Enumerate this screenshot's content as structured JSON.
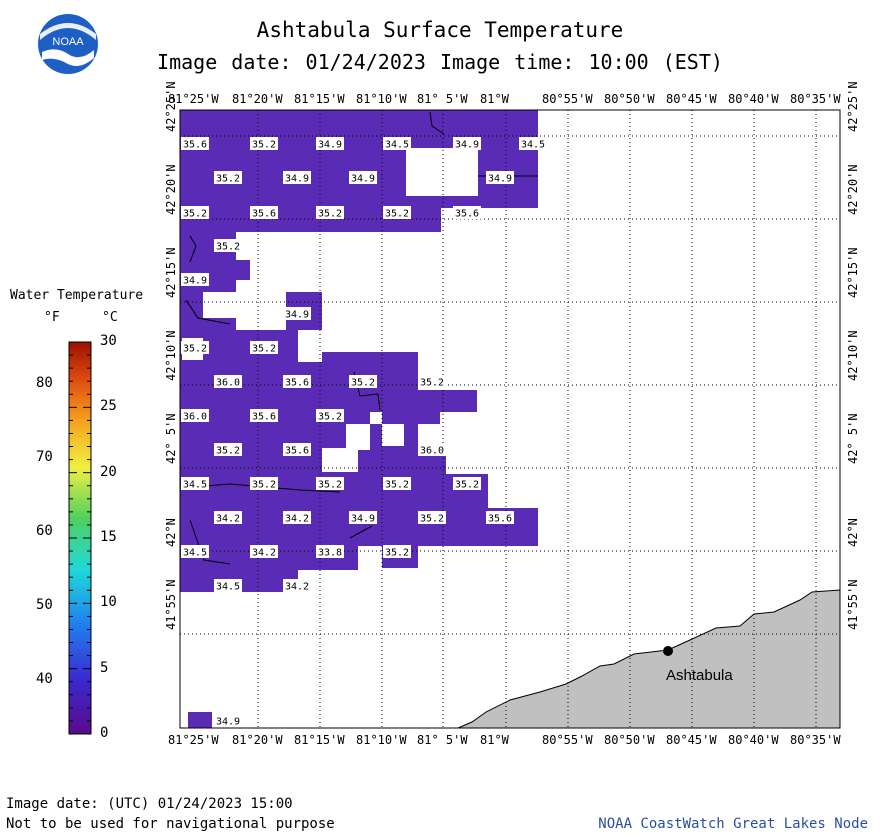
{
  "header": {
    "title": "Ashtabula Surface Temperature",
    "subtitle": "Image date: 01/24/2023    Image time: 10:00 (EST)",
    "logo_text": "NOAA"
  },
  "axes": {
    "lon_labels": [
      "81°25'W",
      "81°20'W",
      "81°15'W",
      "81°10'W",
      "81° 5'W",
      "81°W",
      "80°55'W",
      "80°50'W",
      "80°45'W",
      "80°40'W",
      "80°35'W"
    ],
    "lat_labels": [
      "42°25'N",
      "42°20'N",
      "42°15'N",
      "42°10'N",
      "42° 5'N",
      "42°N",
      "41°55'N"
    ]
  },
  "legend": {
    "title": "Water Temperature",
    "unit_f": "°F",
    "unit_c": "°C",
    "f_ticks": [
      "80",
      "70",
      "60",
      "50",
      "40"
    ],
    "c_ticks": [
      "30",
      "25",
      "20",
      "15",
      "10",
      "5",
      "0"
    ]
  },
  "place": {
    "city": "Ashtabula"
  },
  "temps": [
    "35.6",
    "35.2",
    "34.9",
    "34.5",
    "34.9",
    "34.5",
    "35.2",
    "34.9",
    "34.9",
    "34.9",
    "35.2",
    "35.6",
    "35.2",
    "35.2",
    "35.6",
    "35.2",
    "34.9",
    "34.9",
    "35.2",
    "35.2",
    "36.0",
    "35.6",
    "35.2",
    "35.2",
    "36.0",
    "35.6",
    "35.2",
    "35.2",
    "35.6",
    "36.0",
    "34.5",
    "35.2",
    "35.2",
    "35.2",
    "35.2",
    "34.2",
    "34.2",
    "34.9",
    "35.2",
    "35.6",
    "34.5",
    "34.2",
    "33.8",
    "35.2",
    "34.5",
    "34.2",
    "34.9"
  ],
  "footer": {
    "utc_line": "Image date: (UTC) 01/24/2023  15:00",
    "disclaimer": "Not to be used for navigational purpose",
    "credit": "NOAA CoastWatch Great Lakes Node"
  },
  "colors": {
    "water": "#5a2bb4",
    "land": "#c0c0c0",
    "scale": [
      "#4b0082",
      "#1f3fe0",
      "#27b0f0",
      "#4ad08a",
      "#e8f048",
      "#f5a020",
      "#e05010",
      "#a01400"
    ]
  }
}
